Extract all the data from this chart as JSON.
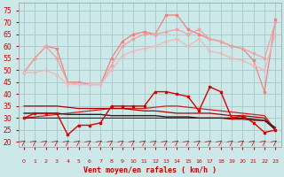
{
  "background_color": "#cce8e8",
  "grid_color": "#aacccc",
  "xlabel": "Vent moyen/en rafales ( km/h )",
  "xlabel_color": "#cc0000",
  "ylabel_ticks": [
    20,
    25,
    30,
    35,
    40,
    45,
    50,
    55,
    60,
    65,
    70,
    75
  ],
  "xticks": [
    0,
    1,
    2,
    3,
    4,
    5,
    6,
    7,
    8,
    9,
    10,
    11,
    12,
    13,
    14,
    15,
    16,
    17,
    18,
    19,
    20,
    21,
    22,
    23
  ],
  "ylim": [
    18,
    78
  ],
  "xlim": [
    -0.5,
    23.5
  ],
  "line_salmon1": [
    49,
    55,
    60,
    59,
    45,
    45,
    44,
    44,
    55,
    62,
    65,
    66,
    65,
    73,
    73,
    67,
    65,
    63,
    62,
    60,
    59,
    54,
    41,
    71
  ],
  "line_salmon2": [
    49,
    55,
    60,
    55,
    45,
    44,
    44,
    44,
    52,
    60,
    63,
    65,
    65,
    66,
    67,
    65,
    67,
    63,
    62,
    60,
    59,
    57,
    55,
    70
  ],
  "line_salmon3": [
    49,
    49,
    50,
    48,
    44,
    44,
    44,
    44,
    50,
    56,
    58,
    59,
    60,
    62,
    63,
    60,
    63,
    58,
    57,
    55,
    54,
    52,
    50,
    65
  ],
  "line_bright_red": [
    30,
    32,
    32,
    32,
    23,
    27,
    27,
    28,
    35,
    35,
    35,
    35,
    41,
    41,
    40,
    39,
    33,
    43,
    41,
    30,
    31,
    28,
    24,
    25
  ],
  "line_trend_red1": [
    30,
    30.5,
    31,
    31.5,
    32,
    32.5,
    33,
    33.5,
    34,
    34,
    34,
    34,
    34.5,
    35,
    35,
    34.5,
    34,
    33.5,
    33,
    32.5,
    32,
    31.5,
    31,
    25
  ],
  "line_trend_dark1": [
    35,
    35,
    35,
    35,
    34.5,
    34,
    34,
    34,
    34,
    34,
    33.5,
    33,
    33,
    32.5,
    32,
    32,
    32,
    32,
    31.5,
    31,
    31,
    30.5,
    30,
    25
  ],
  "line_trend_black": [
    32,
    32,
    32,
    32,
    31.5,
    31.5,
    31.5,
    31.5,
    31,
    31,
    31,
    31,
    31,
    30.5,
    30.5,
    30.5,
    30,
    30,
    30,
    30,
    30,
    29.5,
    29,
    26
  ],
  "line_trend_dark2": [
    30,
    30,
    30,
    30,
    30,
    30,
    30,
    30,
    30,
    30,
    30,
    30,
    30,
    30,
    30,
    30,
    30,
    30,
    30,
    29.5,
    29.5,
    29,
    29,
    25
  ],
  "arrow_color": "#cc0000",
  "tick_color": "#cc0000"
}
